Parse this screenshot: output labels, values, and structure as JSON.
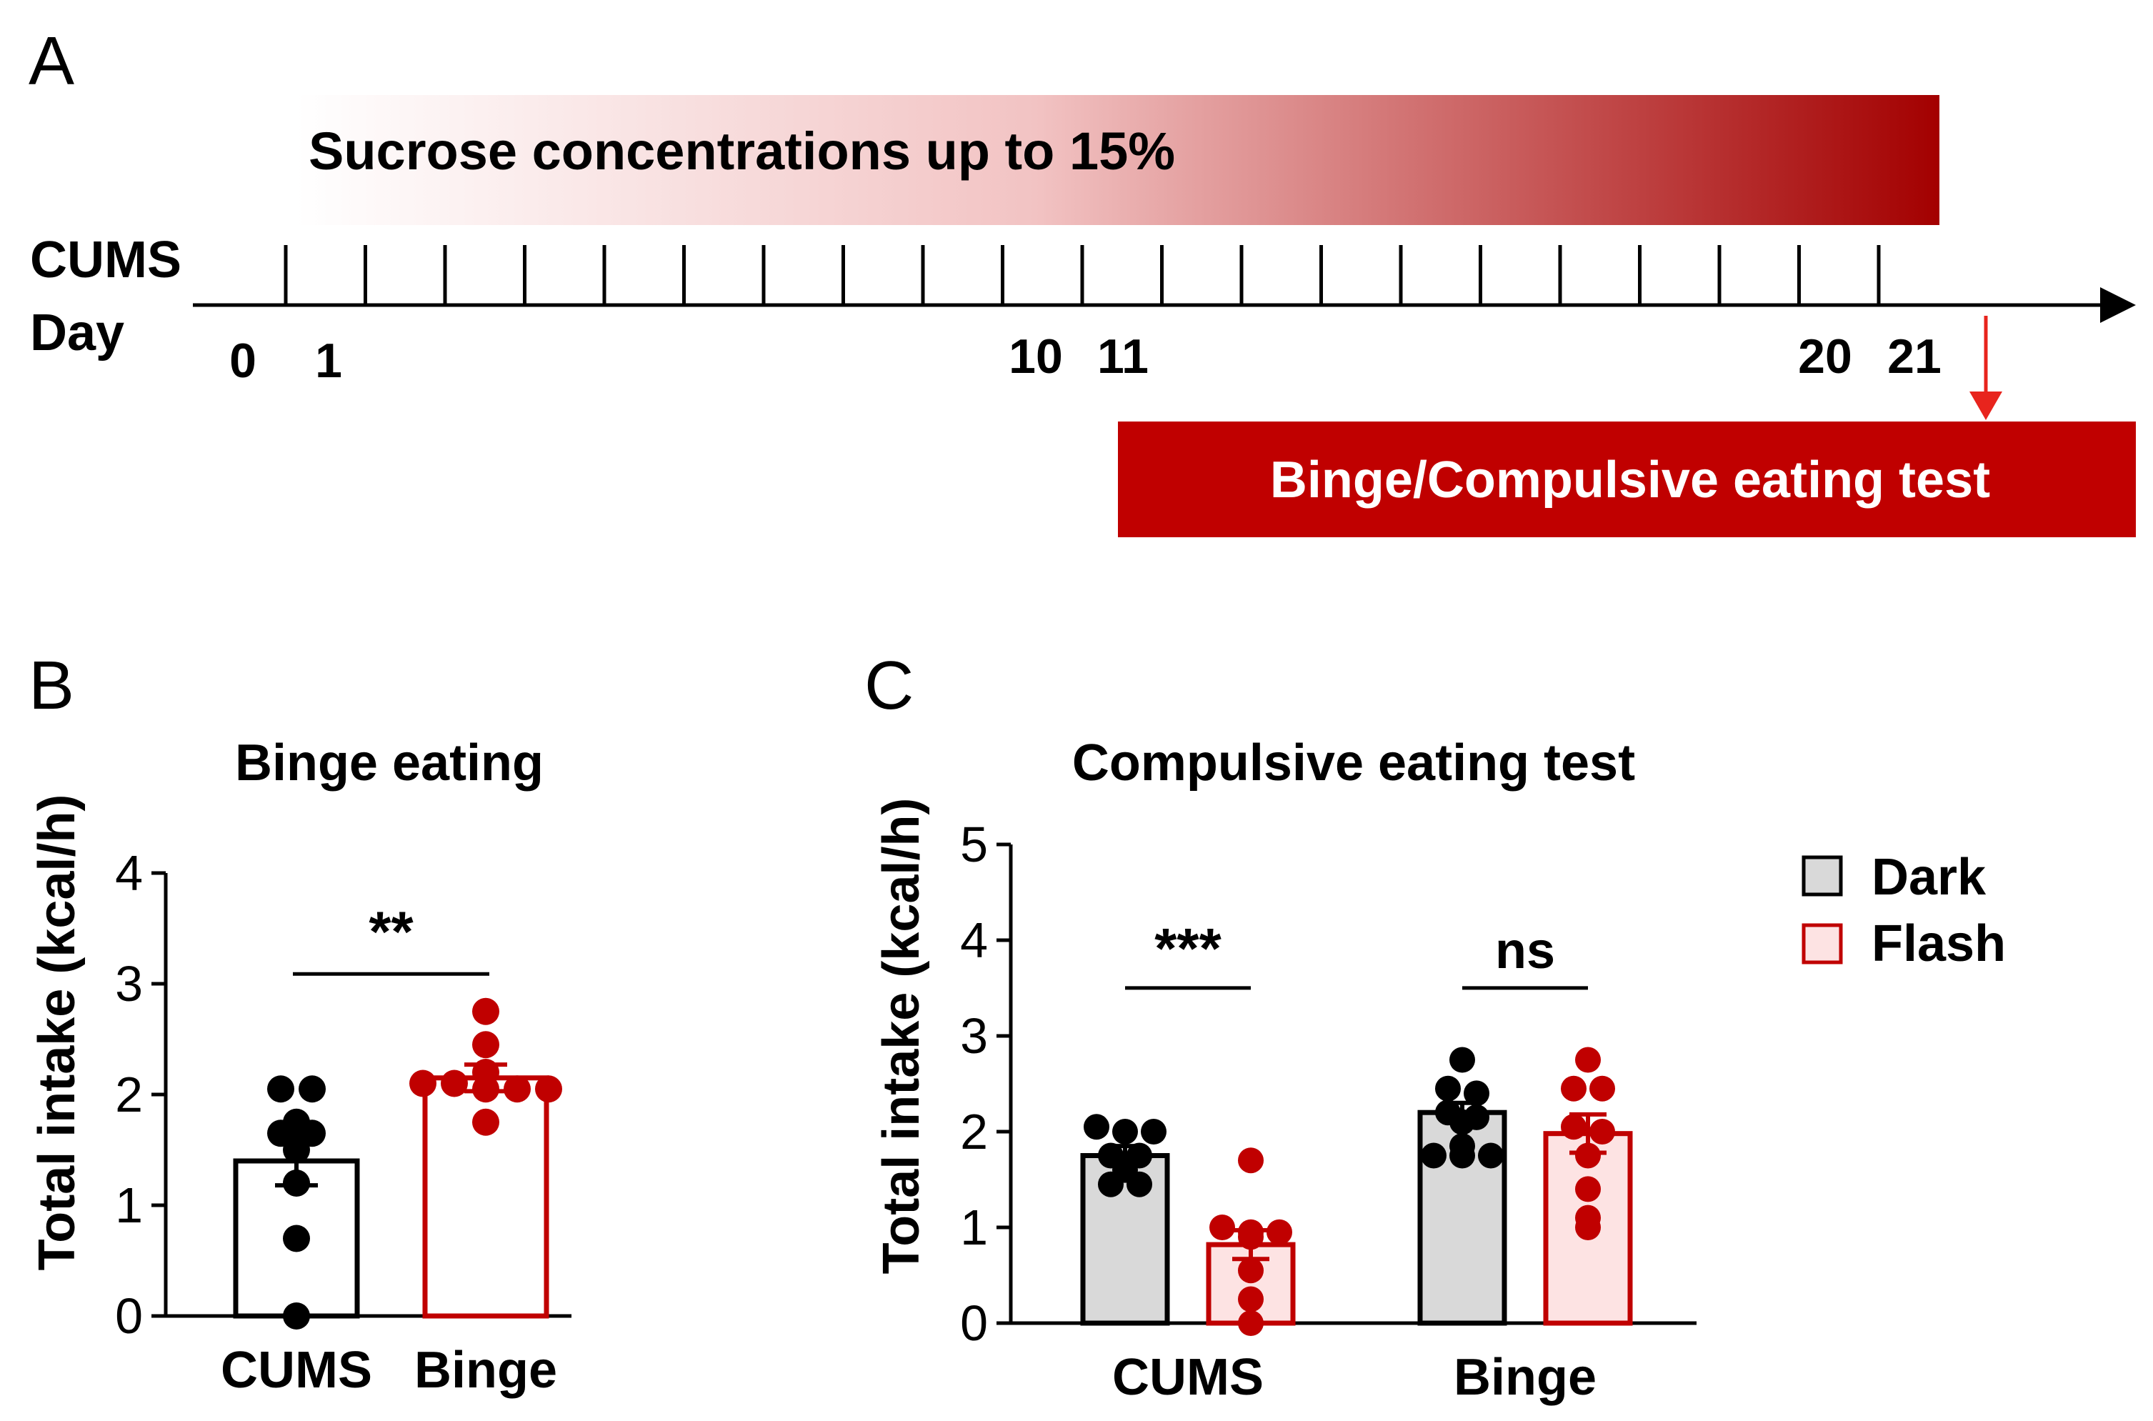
{
  "panel_a": {
    "letter": "A",
    "sucrose_label": "Sucrose concentrations up to 15%",
    "axis_label_1": "CUMS",
    "axis_label_2": "Day",
    "day_labels": [
      "0",
      "1",
      "10",
      "11",
      "20",
      "21"
    ],
    "test_label": "Binge/Compulsive eating test",
    "colors": {
      "dark_red": "#a30000",
      "arrow_red": "#e8241d",
      "bar_red": "#c00000"
    }
  },
  "chart_data": [
    {
      "panel": "B",
      "type": "bar",
      "title": "Binge eating",
      "ylabel": "Total intake (kcal/h)",
      "xlabel": "",
      "ylim": [
        0,
        4
      ],
      "yticks": [
        "0",
        "1",
        "2",
        "3",
        "4"
      ],
      "categories": [
        "CUMS",
        "Binge"
      ],
      "values": [
        1.4,
        2.15
      ],
      "sem": [
        0.22,
        0.12
      ],
      "points": [
        [
          2.05,
          2.05,
          1.75,
          1.65,
          1.65,
          1.5,
          1.2,
          0.7,
          0.0
        ],
        [
          2.75,
          2.45,
          2.2,
          2.1,
          2.1,
          2.05,
          2.05,
          2.05,
          1.75
        ]
      ],
      "bar_fill": [
        "#ffffff",
        "#ffffff"
      ],
      "bar_stroke": [
        "#000000",
        "#c00000"
      ],
      "significance": [
        {
          "label": "**",
          "between": [
            0,
            1
          ],
          "y": 3.25
        }
      ]
    },
    {
      "panel": "C",
      "type": "bar",
      "title": "Compulsive eating test",
      "ylabel": "Total intake (kcal/h)",
      "xlabel": "",
      "ylim": [
        0,
        5
      ],
      "yticks": [
        "0",
        "1",
        "2",
        "3",
        "4",
        "5"
      ],
      "categories": [
        "CUMS",
        "Binge"
      ],
      "series": [
        {
          "name": "Dark",
          "values": [
            1.75,
            2.2
          ],
          "sem": [
            0.1,
            0.1
          ],
          "fill": "#d9d9d9",
          "stroke": "#000000",
          "points": [
            [
              2.05,
              2.0,
              2.0,
              1.75,
              1.75,
              1.6,
              1.45,
              1.45
            ],
            [
              2.75,
              2.45,
              2.4,
              2.2,
              2.15,
              2.1,
              1.85,
              1.75,
              1.75,
              1.75
            ]
          ]
        },
        {
          "name": "Flash",
          "values": [
            0.82,
            1.98
          ],
          "sem": [
            0.15,
            0.2
          ],
          "fill": "#fde3e3",
          "stroke": "#c00000",
          "points": [
            [
              1.7,
              1.0,
              0.95,
              0.95,
              0.9,
              0.55,
              0.25,
              0.0
            ],
            [
              2.75,
              2.45,
              2.45,
              2.05,
              2.0,
              1.75,
              1.4,
              1.1,
              1.0
            ]
          ]
        }
      ],
      "significance": [
        {
          "label": "***",
          "category": 0,
          "y": 3.65
        },
        {
          "label": "ns",
          "category": 1,
          "y": 3.65
        }
      ],
      "legend": {
        "position": "top-right",
        "entries": [
          "Dark",
          "Flash"
        ]
      }
    }
  ]
}
